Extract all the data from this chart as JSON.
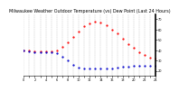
{
  "title": "Milwaukee Weather Outdoor Temperature (vs) Dew Point (Last 24 Hours)",
  "title_fontsize": 3.5,
  "background_color": "#ffffff",
  "grid_color": "#bbbbbb",
  "xlim": [
    0,
    24
  ],
  "ylim": [
    15,
    75
  ],
  "yticks_right": [
    20,
    30,
    40,
    50,
    60,
    70
  ],
  "xticks": [
    0,
    1,
    2,
    3,
    4,
    5,
    6,
    7,
    8,
    9,
    10,
    11,
    12,
    13,
    14,
    15,
    16,
    17,
    18,
    19,
    20,
    21,
    22,
    23,
    24
  ],
  "temp_x": [
    0,
    1,
    2,
    3,
    4,
    5,
    6,
    7,
    8,
    9,
    10,
    11,
    12,
    13,
    14,
    15,
    16,
    17,
    18,
    19,
    20,
    21,
    22,
    23,
    24
  ],
  "temp_y": [
    40,
    40,
    39,
    39,
    39,
    39,
    40,
    43,
    48,
    53,
    58,
    63,
    66,
    68,
    67,
    64,
    60,
    56,
    51,
    46,
    42,
    38,
    35,
    33,
    32
  ],
  "dew_x": [
    0,
    1,
    2,
    3,
    4,
    5,
    6,
    7,
    8,
    9,
    10,
    11,
    12,
    13,
    14,
    15,
    16,
    17,
    18,
    19,
    20,
    21,
    22,
    23,
    24
  ],
  "dew_y": [
    40,
    39,
    38,
    38,
    38,
    38,
    37,
    34,
    30,
    26,
    23,
    22,
    22,
    22,
    22,
    22,
    22,
    23,
    24,
    24,
    25,
    25,
    25,
    25,
    25
  ],
  "temp_color": "#ff0000",
  "dew_color": "#0000cc",
  "marker_size": 1.2,
  "line_style": "None",
  "marker": "."
}
